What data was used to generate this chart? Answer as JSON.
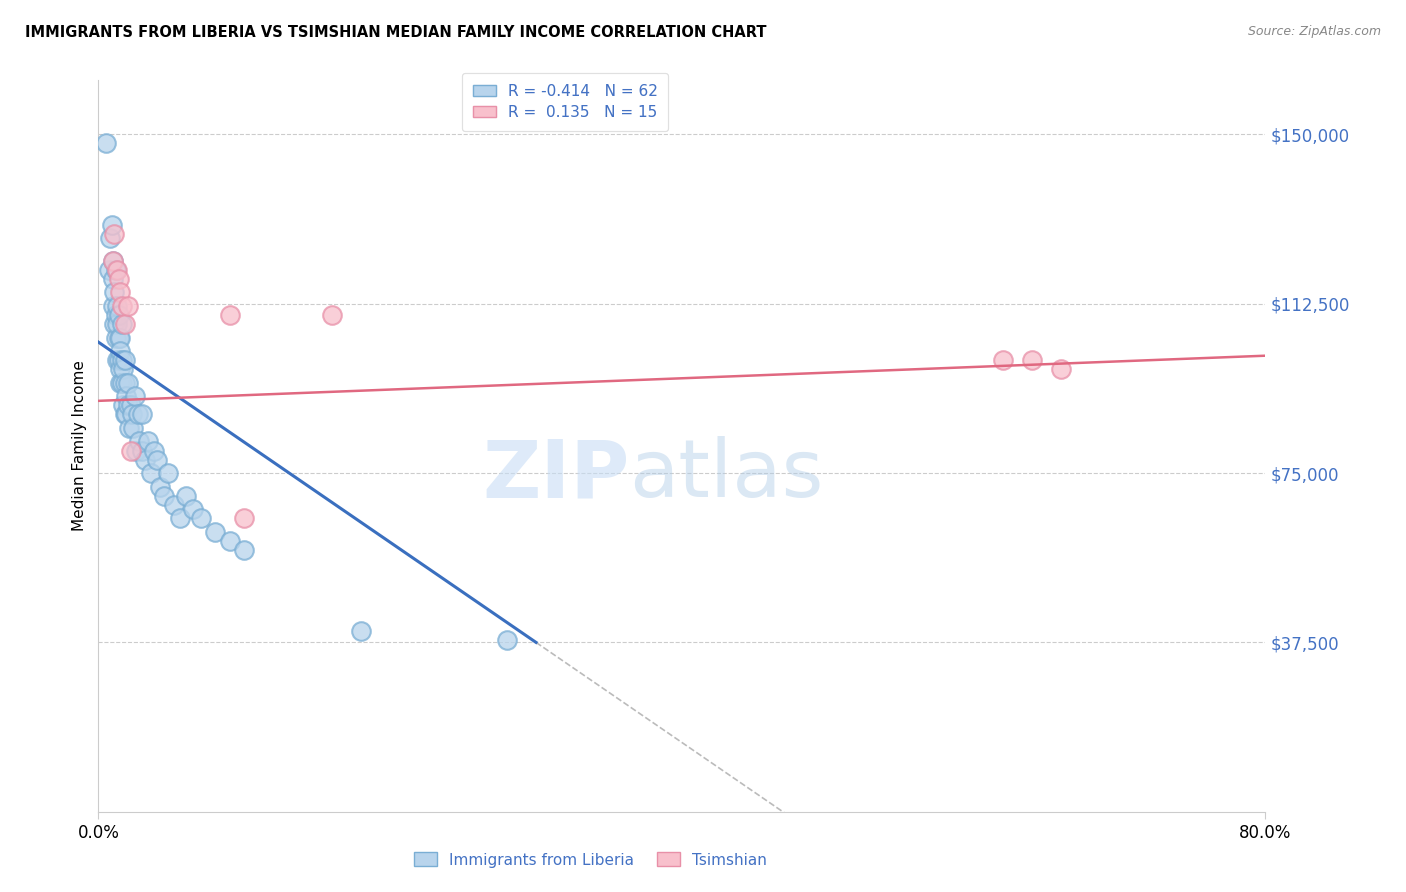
{
  "title": "IMMIGRANTS FROM LIBERIA VS TSIMSHIAN MEDIAN FAMILY INCOME CORRELATION CHART",
  "source": "Source: ZipAtlas.com",
  "ylabel": "Median Family Income",
  "ytick_labels": [
    "$150,000",
    "$112,500",
    "$75,000",
    "$37,500"
  ],
  "ytick_values": [
    150000,
    112500,
    75000,
    37500
  ],
  "ylim": [
    0,
    162000
  ],
  "xlim": [
    0.0,
    0.8
  ],
  "R_liberia": -0.414,
  "N_liberia": 62,
  "R_tsimshian": 0.135,
  "N_tsimshian": 15,
  "color_liberia_face": "#b8d4ec",
  "color_liberia_edge": "#7aaed4",
  "color_tsimshian_face": "#f8c0cc",
  "color_tsimshian_edge": "#e890a8",
  "line_color_liberia": "#3a6fbf",
  "line_color_tsimshian": "#e06880",
  "liberia_x": [
    0.005,
    0.007,
    0.008,
    0.009,
    0.01,
    0.01,
    0.01,
    0.011,
    0.011,
    0.012,
    0.012,
    0.012,
    0.013,
    0.013,
    0.013,
    0.014,
    0.014,
    0.014,
    0.015,
    0.015,
    0.015,
    0.015,
    0.016,
    0.016,
    0.016,
    0.017,
    0.017,
    0.018,
    0.018,
    0.018,
    0.019,
    0.019,
    0.02,
    0.02,
    0.021,
    0.022,
    0.023,
    0.024,
    0.025,
    0.026,
    0.027,
    0.028,
    0.03,
    0.03,
    0.032,
    0.034,
    0.036,
    0.038,
    0.04,
    0.042,
    0.045,
    0.048,
    0.052,
    0.056,
    0.06,
    0.065,
    0.07,
    0.08,
    0.09,
    0.1,
    0.18,
    0.28
  ],
  "liberia_y": [
    148000,
    120000,
    127000,
    130000,
    122000,
    118000,
    112000,
    115000,
    108000,
    120000,
    110000,
    105000,
    108000,
    112000,
    100000,
    105000,
    100000,
    110000,
    105000,
    102000,
    98000,
    95000,
    108000,
    100000,
    95000,
    98000,
    90000,
    95000,
    100000,
    88000,
    92000,
    88000,
    95000,
    90000,
    85000,
    90000,
    88000,
    85000,
    92000,
    80000,
    88000,
    82000,
    88000,
    80000,
    78000,
    82000,
    75000,
    80000,
    78000,
    72000,
    70000,
    75000,
    68000,
    65000,
    70000,
    67000,
    65000,
    62000,
    60000,
    58000,
    40000,
    38000
  ],
  "tsimshian_x": [
    0.01,
    0.011,
    0.013,
    0.014,
    0.015,
    0.016,
    0.018,
    0.02,
    0.022,
    0.09,
    0.1,
    0.16,
    0.62,
    0.64,
    0.66
  ],
  "tsimshian_y": [
    122000,
    128000,
    120000,
    118000,
    115000,
    112000,
    108000,
    112000,
    80000,
    110000,
    65000,
    110000,
    100000,
    100000,
    98000
  ],
  "line_liberia_x0": 0.0,
  "line_liberia_y0": 104000,
  "line_liberia_x1": 0.3,
  "line_liberia_y1": 37500,
  "line_tsimshian_x0": 0.0,
  "line_tsimshian_y0": 91000,
  "line_tsimshian_x1": 0.8,
  "line_tsimshian_y1": 101000
}
